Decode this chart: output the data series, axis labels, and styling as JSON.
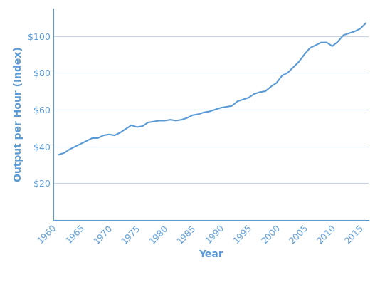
{
  "years": [
    1960,
    1961,
    1962,
    1963,
    1964,
    1965,
    1966,
    1967,
    1968,
    1969,
    1970,
    1971,
    1972,
    1973,
    1974,
    1975,
    1976,
    1977,
    1978,
    1979,
    1980,
    1981,
    1982,
    1983,
    1984,
    1985,
    1986,
    1987,
    1988,
    1989,
    1990,
    1991,
    1992,
    1993,
    1994,
    1995,
    1996,
    1997,
    1998,
    1999,
    2000,
    2001,
    2002,
    2003,
    2004,
    2005,
    2006,
    2007,
    2008,
    2009,
    2010,
    2011,
    2012,
    2013,
    2014,
    2015
  ],
  "values": [
    35.5,
    36.5,
    38.5,
    40.0,
    41.5,
    43.0,
    44.5,
    44.5,
    46.0,
    46.5,
    46.0,
    47.5,
    49.5,
    51.5,
    50.5,
    51.0,
    53.0,
    53.5,
    54.0,
    54.0,
    54.5,
    54.0,
    54.5,
    55.5,
    57.0,
    57.5,
    58.5,
    59.0,
    60.0,
    61.0,
    61.5,
    62.0,
    64.5,
    65.5,
    66.5,
    68.5,
    69.5,
    70.0,
    72.5,
    74.5,
    78.5,
    80.0,
    83.0,
    86.0,
    90.0,
    93.5,
    95.0,
    96.5,
    96.5,
    94.5,
    97.0,
    100.5,
    101.5,
    102.5,
    104.0,
    107.0
  ],
  "line_color": "#5b9bd5",
  "line_width": 1.5,
  "xlabel": "Year",
  "ylabel": "Output per Hour (Index)",
  "yticks": [
    20,
    40,
    60,
    80,
    100
  ],
  "xticks": [
    1960,
    1965,
    1970,
    1975,
    1980,
    1985,
    1990,
    1995,
    2000,
    2005,
    2010,
    2015
  ],
  "ylim": [
    0,
    115
  ],
  "xlim": [
    1959,
    2015.5
  ],
  "background_color": "#ffffff",
  "grid_color": "#c8d4e8",
  "axis_color": "#5b9bd5",
  "tick_color": "#5b9bd5",
  "label_color": "#5b9bd5",
  "label_fontsize": 10,
  "tick_fontsize": 9
}
